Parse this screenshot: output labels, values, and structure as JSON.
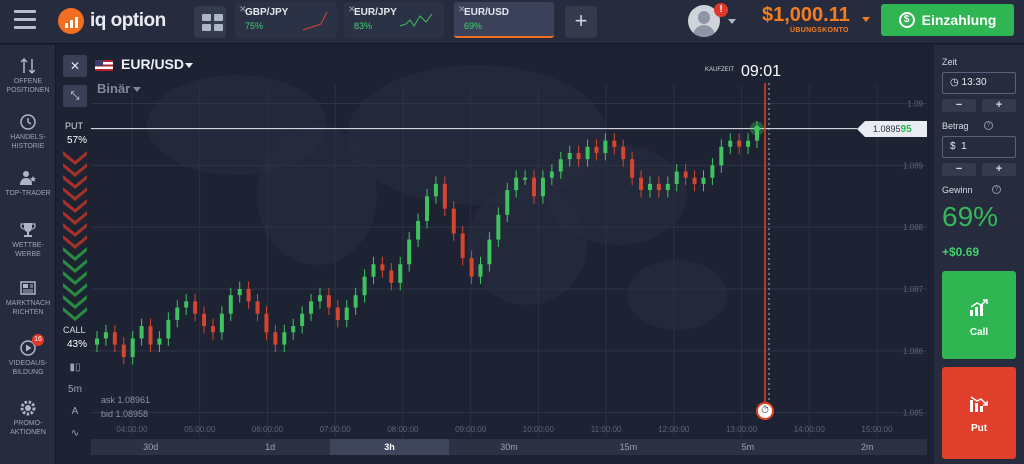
{
  "header": {
    "brand": "iq option",
    "balance": "$1,000.11",
    "account_type": "ÜBUNGSKONTO",
    "deposit_label": "Einzahlung",
    "notification_badge": "!",
    "tabs": [
      {
        "name": "GBP/JPY",
        "pct": "75%"
      },
      {
        "name": "EUR/JPY",
        "pct": "83%"
      },
      {
        "name": "EUR/USD",
        "pct": "69%"
      }
    ]
  },
  "sidebar": {
    "items": [
      {
        "label": "OFFENE POSITIONEN",
        "icon": "arrows-updown-icon"
      },
      {
        "label": "HANDELS-HISTORIE",
        "icon": "history-icon"
      },
      {
        "label": "TOP-TRADER",
        "icon": "top-trader-icon"
      },
      {
        "label": "WETTBE-WERBE",
        "icon": "trophy-icon"
      },
      {
        "label": "MARKTNACH RICHTEN",
        "icon": "news-icon"
      },
      {
        "label": "VIDEOAUS-BILDUNG",
        "icon": "video-icon",
        "badge": "16"
      },
      {
        "label": "PROMO-AKTIONEN",
        "icon": "gear-icon"
      }
    ]
  },
  "chart": {
    "pair": "EUR/USD",
    "mode": "Binär",
    "put_label": "PUT",
    "put_pct": "57%",
    "call_label": "CALL",
    "call_pct": "43%",
    "ask": "ask 1.08961",
    "bid": "bid 1.08958",
    "buy_time_label": "KAUFZEIT",
    "buy_time": "09:01",
    "current_price_main": "1.0895",
    "current_price_tail": "95",
    "tool_interval": "5m",
    "timeframes": [
      "30d",
      "1d",
      "3h",
      "30m",
      "15m",
      "5m",
      "2m"
    ],
    "active_timeframe": "3h",
    "colors": {
      "up": "#3fc35e",
      "down": "#d6452d",
      "expiry_line": "#e5411d"
    }
  },
  "panel": {
    "time_label": "Zeit",
    "time_value": "13:30",
    "amount_label": "Betrag",
    "amount_value": "1",
    "currency": "$",
    "profit_label": "Gewinn",
    "profit_pct": "69%",
    "profit_abs": "+$0.69",
    "call_label": "Call",
    "put_label": "Put",
    "minus": "−",
    "plus": "+"
  },
  "chart_data": {
    "type": "candlestick",
    "y_ticks": [
      "1.09",
      "1.089",
      "1.088",
      "1.087",
      "1.086",
      "1.085"
    ],
    "x_ticks": [
      "04:00:00",
      "05:00:00",
      "06:00:00",
      "07:00:00",
      "08:00:00",
      "09:00:00",
      "10:00:00",
      "11:00:00",
      "12:00:00",
      "13:00:00",
      "14:00:00",
      "15:00:00"
    ],
    "ylim": [
      1.0848,
      1.0903
    ],
    "current_price": 1.089595,
    "close_series": [
      1.0862,
      1.0863,
      1.0861,
      1.0859,
      1.0862,
      1.0864,
      1.0861,
      1.0862,
      1.0865,
      1.0867,
      1.0868,
      1.0866,
      1.0864,
      1.0863,
      1.0866,
      1.0869,
      1.087,
      1.0868,
      1.0866,
      1.0863,
      1.0861,
      1.0863,
      1.0864,
      1.0866,
      1.0868,
      1.0869,
      1.0867,
      1.0865,
      1.0867,
      1.0869,
      1.0872,
      1.0874,
      1.0873,
      1.0871,
      1.0874,
      1.0878,
      1.0881,
      1.0885,
      1.0887,
      1.0883,
      1.0879,
      1.0875,
      1.0872,
      1.0874,
      1.0878,
      1.0882,
      1.0886,
      1.0888,
      1.0888,
      1.0885,
      1.0888,
      1.0889,
      1.0891,
      1.0892,
      1.0891,
      1.0893,
      1.0892,
      1.0894,
      1.0893,
      1.0891,
      1.0888,
      1.0886,
      1.0887,
      1.0886,
      1.0887,
      1.0889,
      1.0888,
      1.0887,
      1.0888,
      1.089,
      1.0893,
      1.0894,
      1.0893,
      1.0894,
      1.0896
    ]
  }
}
